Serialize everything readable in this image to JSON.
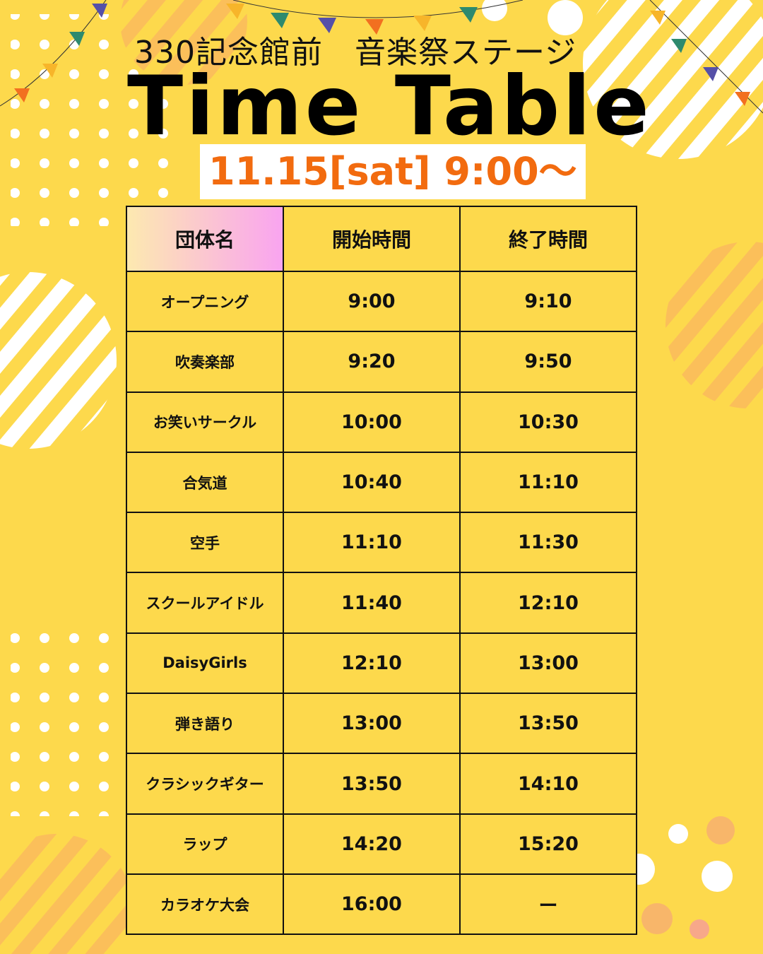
{
  "header": {
    "subtitle": "330記念館前　音楽祭ステージ",
    "title": "Time Table",
    "date": "11.15[sat] 9:00〜"
  },
  "colors": {
    "background": "#fdd94c",
    "accent": "#f26b0f",
    "header_gradient": [
      "#fde9b0",
      "#f9a4f0"
    ]
  },
  "table": {
    "columns": [
      "団体名",
      "開始時間",
      "終了時間"
    ],
    "rows": [
      {
        "name": "オープニング",
        "start": "9:00",
        "end": "9:10"
      },
      {
        "name": "吹奏楽部",
        "start": "9:20",
        "end": "9:50"
      },
      {
        "name": "お笑いサークル",
        "start": "10:00",
        "end": "10:30"
      },
      {
        "name": "合気道",
        "start": "10:40",
        "end": "11:10"
      },
      {
        "name": "空手",
        "start": "11:10",
        "end": "11:30"
      },
      {
        "name": "スクールアイドル",
        "start": "11:40",
        "end": "12:10"
      },
      {
        "name": "DaisyGirls",
        "start": "12:10",
        "end": "13:00"
      },
      {
        "name": "弾き語り",
        "start": "13:00",
        "end": "13:50"
      },
      {
        "name": "クラシックギター",
        "start": "13:50",
        "end": "14:10"
      },
      {
        "name": "ラップ",
        "start": "14:20",
        "end": "15:20"
      },
      {
        "name": "カラオケ大会",
        "start": "16:00",
        "end": "ー"
      }
    ]
  }
}
